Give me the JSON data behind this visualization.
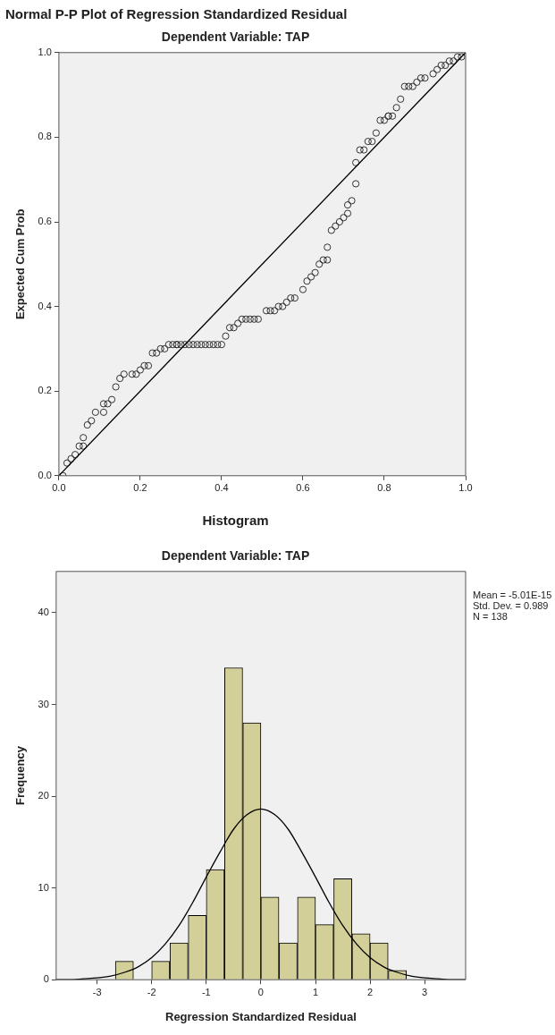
{
  "chart_data": [
    {
      "type": "scatter",
      "title": "Normal P-P Plot of Regression Standardized Residual",
      "subtitle": "Dependent Variable: TAP",
      "ylabel": "Expected Cum Prob",
      "xlim": [
        0,
        1
      ],
      "ylim": [
        0,
        1
      ],
      "xticks": [
        {
          "value": 0,
          "label": "0.0"
        },
        0.2,
        0.4,
        0.6,
        0.8,
        {
          "value": 1,
          "label": "1.0"
        }
      ],
      "yticks": [
        {
          "value": 0,
          "label": "0.0"
        },
        0.2,
        0.4,
        0.6,
        0.8,
        {
          "value": 1,
          "label": "1.0"
        }
      ],
      "grid": false,
      "legend": false,
      "marker": "circle",
      "series": [
        {
          "color": "#333333",
          "x": [
            0.01,
            0.02,
            0.03,
            0.04,
            0.05,
            0.06,
            0.06,
            0.07,
            0.08,
            0.09,
            0.11,
            0.11,
            0.12,
            0.13,
            0.14,
            0.15,
            0.16,
            0.18,
            0.19,
            0.2,
            0.21,
            0.22,
            0.23,
            0.24,
            0.25,
            0.26,
            0.27,
            0.28,
            0.29,
            0.29,
            0.3,
            0.31,
            0.32,
            0.33,
            0.34,
            0.35,
            0.36,
            0.37,
            0.38,
            0.39,
            0.4,
            0.41,
            0.42,
            0.43,
            0.44,
            0.45,
            0.46,
            0.47,
            0.48,
            0.49,
            0.51,
            0.52,
            0.53,
            0.54,
            0.55,
            0.56,
            0.57,
            0.58,
            0.6,
            0.61,
            0.62,
            0.63,
            0.64,
            0.65,
            0.66,
            0.66,
            0.67,
            0.68,
            0.69,
            0.7,
            0.71,
            0.71,
            0.72,
            0.73,
            0.73,
            0.74,
            0.75,
            0.76,
            0.77,
            0.78,
            0.79,
            0.8,
            0.81,
            0.81,
            0.82,
            0.83,
            0.84,
            0.85,
            0.86,
            0.87,
            0.88,
            0.89,
            0.9,
            0.92,
            0.93,
            0.94,
            0.95,
            0.96,
            0.97,
            0.98,
            0.99
          ],
          "values": [
            0.0,
            0.03,
            0.04,
            0.05,
            0.07,
            0.07,
            0.09,
            0.12,
            0.13,
            0.15,
            0.15,
            0.17,
            0.17,
            0.18,
            0.21,
            0.23,
            0.24,
            0.24,
            0.24,
            0.25,
            0.26,
            0.26,
            0.29,
            0.29,
            0.3,
            0.3,
            0.31,
            0.31,
            0.31,
            0.31,
            0.31,
            0.31,
            0.31,
            0.31,
            0.31,
            0.31,
            0.31,
            0.31,
            0.31,
            0.31,
            0.31,
            0.33,
            0.35,
            0.35,
            0.36,
            0.37,
            0.37,
            0.37,
            0.37,
            0.37,
            0.39,
            0.39,
            0.39,
            0.4,
            0.4,
            0.41,
            0.42,
            0.42,
            0.44,
            0.46,
            0.47,
            0.48,
            0.5,
            0.51,
            0.51,
            0.54,
            0.58,
            0.59,
            0.6,
            0.61,
            0.62,
            0.64,
            0.65,
            0.69,
            0.74,
            0.77,
            0.77,
            0.79,
            0.79,
            0.81,
            0.84,
            0.84,
            0.85,
            0.85,
            0.85,
            0.87,
            0.89,
            0.92,
            0.92,
            0.92,
            0.93,
            0.94,
            0.94,
            0.95,
            0.96,
            0.97,
            0.97,
            0.98,
            0.98,
            0.99,
            0.99
          ]
        },
        {
          "type": "line",
          "marker": "none",
          "color": "#000000",
          "x": [
            0,
            1
          ],
          "values": [
            0,
            1
          ]
        }
      ]
    },
    {
      "type": "histogram",
      "title": "Histogram",
      "subtitle": "Dependent Variable: TAP",
      "xlabel": "Regression Standardized Residual",
      "ylabel": "Frequency",
      "xlim": [
        -3.75,
        3.75
      ],
      "xticks": [
        -3,
        -2,
        -1,
        0,
        1,
        2,
        3
      ],
      "ylim": [
        0,
        44.5
      ],
      "yticks": [
        0,
        10,
        20,
        30,
        40
      ],
      "grid": false,
      "legend": false,
      "color": "#d3cf98",
      "bins": [
        -2.67,
        -2.33,
        -2,
        -1.67,
        -1.33,
        -1,
        -0.67,
        -0.33,
        0,
        0.33,
        0.67,
        1,
        1.33,
        1.67,
        2,
        2.33,
        2.67
      ],
      "values": [
        2,
        0,
        2,
        4,
        7,
        12,
        34,
        28,
        9,
        4,
        9,
        6,
        11,
        5,
        4,
        1
      ],
      "series": [
        {
          "type": "line",
          "marker": "none",
          "color": "#000000",
          "x": [
            -3.75,
            -3.5,
            -3.25,
            -3,
            -2.75,
            -2.5,
            -2.25,
            -2,
            -1.75,
            -1.5,
            -1.25,
            -1,
            -0.75,
            -0.5,
            -0.25,
            0,
            0.25,
            0.5,
            0.75,
            1,
            1.25,
            1.5,
            1.75,
            2,
            2.25,
            2.5,
            2.75,
            3,
            3.25,
            3.5,
            3.75
          ],
          "values": [
            0,
            0,
            0.1,
            0.2,
            0.4,
            0.8,
            1.4,
            2.4,
            3.9,
            5.9,
            8.4,
            11.2,
            13.9,
            16.4,
            18,
            18.6,
            18,
            16.4,
            13.9,
            11.2,
            8.4,
            5.9,
            3.9,
            2.4,
            1.4,
            0.8,
            0.4,
            0.2,
            0.1,
            0,
            0
          ]
        }
      ],
      "annotations": [
        "Mean = -5.01E-15",
        "Std. Dev. = 0.989",
        "N = 138"
      ]
    }
  ]
}
